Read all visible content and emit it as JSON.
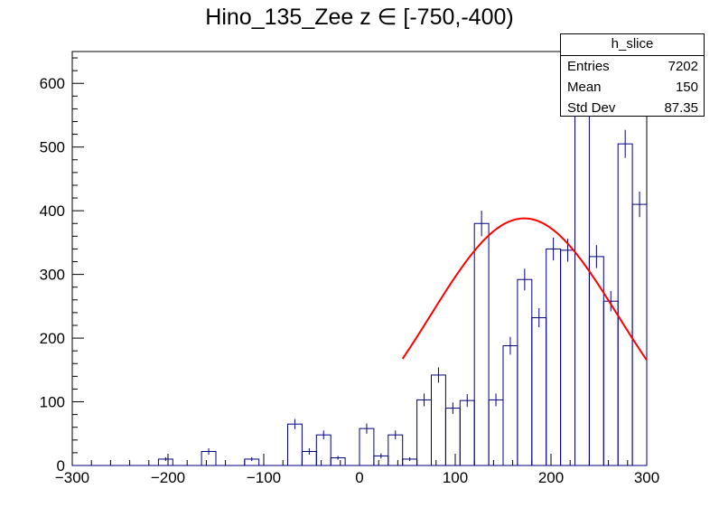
{
  "title": "Hino_135_Zee z  ∈ [-750,-400)",
  "stats": {
    "name": "h_slice",
    "rows": [
      {
        "label": "Entries",
        "value": "7202"
      },
      {
        "label": "Mean",
        "value": "150"
      },
      {
        "label": "Std Dev",
        "value": "87.35"
      }
    ]
  },
  "colors": {
    "histogram": "#000080",
    "fit": "#ff0000",
    "axis": "#000000"
  },
  "chart_data": {
    "type": "histogram",
    "xlim": [
      -300,
      300
    ],
    "ylim": [
      0,
      650
    ],
    "xticks": [
      -300,
      -200,
      -100,
      0,
      100,
      200,
      300
    ],
    "xtick_labels": [
      "−300",
      "−200",
      "−100",
      "0",
      "100",
      "200",
      "300"
    ],
    "yticks": [
      0,
      100,
      200,
      300,
      400,
      500,
      600
    ],
    "bin_width": 15,
    "bins": [
      {
        "x0": -300,
        "value": 0,
        "err": 0
      },
      {
        "x0": -285,
        "value": 0,
        "err": 0
      },
      {
        "x0": -270,
        "value": 0,
        "err": 0
      },
      {
        "x0": -255,
        "value": 0,
        "err": 0
      },
      {
        "x0": -240,
        "value": 0,
        "err": 0
      },
      {
        "x0": -225,
        "value": 0,
        "err": 0
      },
      {
        "x0": -210,
        "value": 10,
        "err": 3
      },
      {
        "x0": -195,
        "value": 0,
        "err": 0
      },
      {
        "x0": -180,
        "value": 0,
        "err": 0
      },
      {
        "x0": -165,
        "value": 22,
        "err": 5
      },
      {
        "x0": -150,
        "value": 0,
        "err": 0
      },
      {
        "x0": -135,
        "value": 0,
        "err": 0
      },
      {
        "x0": -120,
        "value": 10,
        "err": 3
      },
      {
        "x0": -105,
        "value": 0,
        "err": 0
      },
      {
        "x0": -90,
        "value": 0,
        "err": 0
      },
      {
        "x0": -75,
        "value": 65,
        "err": 8
      },
      {
        "x0": -60,
        "value": 22,
        "err": 5
      },
      {
        "x0": -45,
        "value": 48,
        "err": 7
      },
      {
        "x0": -30,
        "value": 12,
        "err": 3
      },
      {
        "x0": -15,
        "value": 0,
        "err": 0
      },
      {
        "x0": 0,
        "value": 58,
        "err": 8
      },
      {
        "x0": 15,
        "value": 15,
        "err": 4
      },
      {
        "x0": 30,
        "value": 48,
        "err": 7
      },
      {
        "x0": 45,
        "value": 10,
        "err": 3
      },
      {
        "x0": 60,
        "value": 103,
        "err": 10
      },
      {
        "x0": 75,
        "value": 142,
        "err": 12
      },
      {
        "x0": 90,
        "value": 90,
        "err": 9
      },
      {
        "x0": 105,
        "value": 102,
        "err": 10
      },
      {
        "x0": 120,
        "value": 380,
        "err": 20
      },
      {
        "x0": 135,
        "value": 103,
        "err": 10
      },
      {
        "x0": 150,
        "value": 188,
        "err": 14
      },
      {
        "x0": 165,
        "value": 292,
        "err": 17
      },
      {
        "x0": 180,
        "value": 232,
        "err": 15
      },
      {
        "x0": 195,
        "value": 340,
        "err": 18
      },
      {
        "x0": 210,
        "value": 338,
        "err": 18
      },
      {
        "x0": 225,
        "value": 592,
        "err": 24
      },
      {
        "x0": 240,
        "value": 328,
        "err": 18
      },
      {
        "x0": 255,
        "value": 258,
        "err": 16
      },
      {
        "x0": 270,
        "value": 505,
        "err": 22
      },
      {
        "x0": 285,
        "value": 410,
        "err": 20
      }
    ],
    "fit": {
      "name": "gaus",
      "x_range": [
        45,
        300
      ],
      "amplitude": 388,
      "mean": 172,
      "sigma": 98
    }
  }
}
